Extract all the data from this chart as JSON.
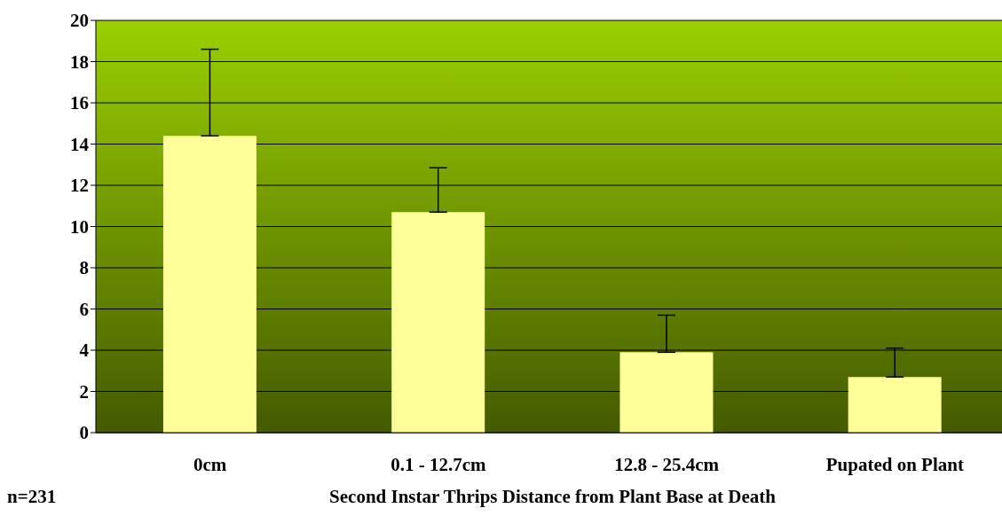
{
  "chart_data": {
    "type": "bar",
    "xlabel": "Second Instar Thrips Distance from Plant Base at Death",
    "annotations": [
      "n=231"
    ],
    "categories": [
      "0cm",
      "0.1 - 12.7cm",
      "12.8 - 25.4cm",
      "Pupated on Plant"
    ],
    "values": [
      14.4,
      10.7,
      3.9,
      2.7
    ],
    "errors": [
      [
        14.4,
        18.6
      ],
      [
        10.7,
        12.85
      ],
      [
        3.9,
        5.7
      ],
      [
        2.7,
        4.1
      ]
    ],
    "color": "#ffff99",
    "ylim": [
      0,
      20
    ],
    "yticks": [
      0,
      2,
      4,
      6,
      8,
      10,
      12,
      14,
      16,
      18,
      20
    ],
    "grid": "y"
  }
}
